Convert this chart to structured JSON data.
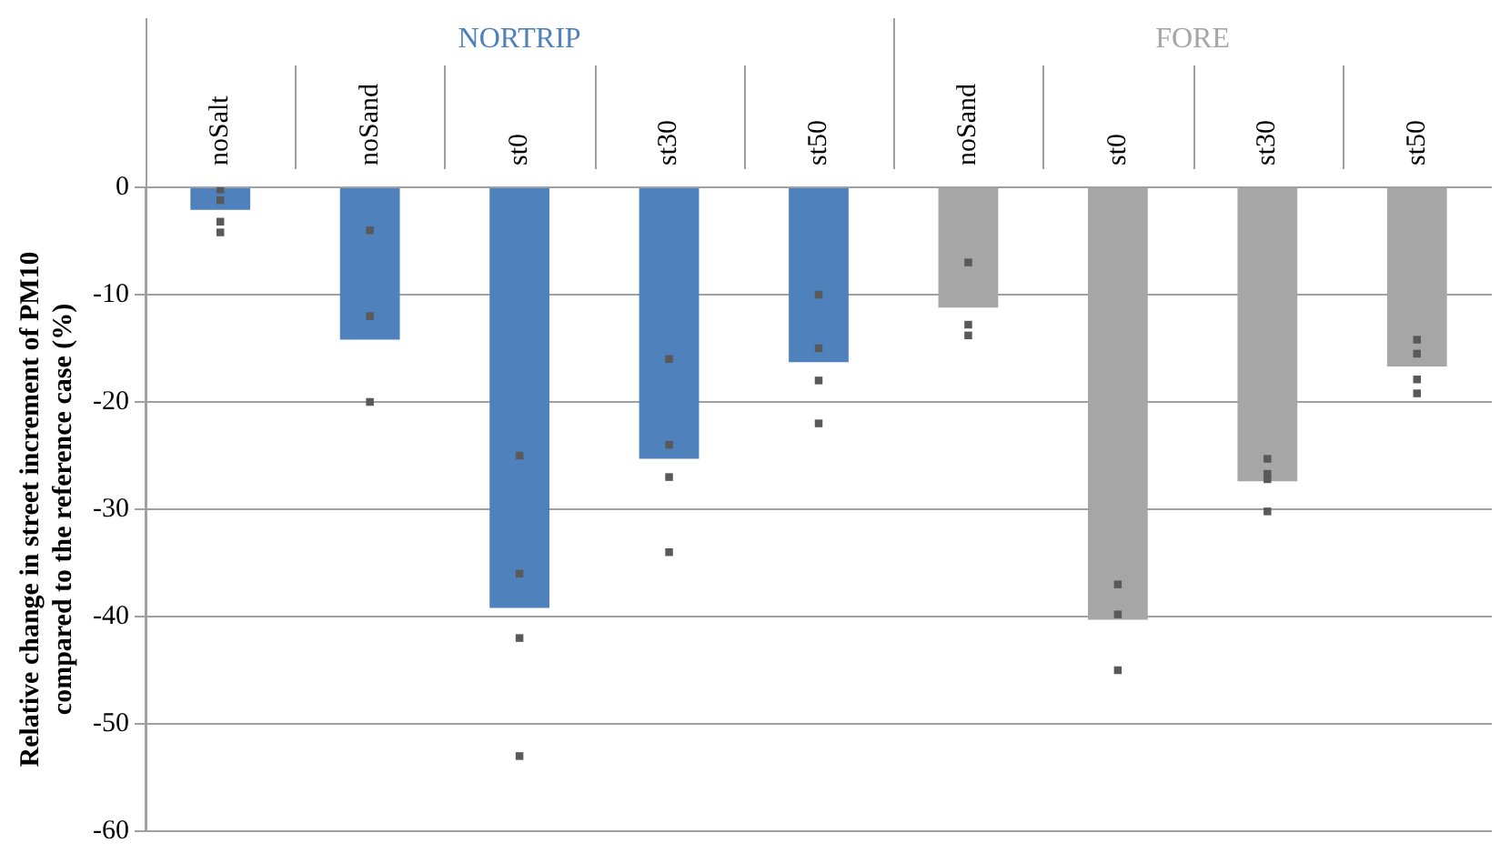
{
  "chart_data": {
    "type": "bar",
    "ylabel": "Relative change in street increment of PM10\ncompared to the reference case (%)",
    "categories": [
      "noSalt",
      "noSand",
      "st0",
      "st30",
      "st50",
      "noSand",
      "st0",
      "st30",
      "st50"
    ],
    "series": [
      {
        "name": "NORTRIP",
        "color": "#4f81bd",
        "values": [
          -2.1,
          -14.2,
          -39.2,
          -25.3,
          -16.3,
          null,
          null,
          null,
          null
        ]
      },
      {
        "name": "FORE",
        "color": "#a6a6a6",
        "values": [
          null,
          null,
          null,
          null,
          null,
          -11.2,
          -40.3,
          -27.4,
          -16.7
        ]
      },
      {
        "type": "scatter",
        "color": "#595959",
        "values": [
          -0.2,
          -4,
          -25,
          -16,
          -10,
          -7,
          -37,
          -25.3,
          -14.2
        ]
      },
      {
        "type": "scatter",
        "color": "#595959",
        "values": [
          -1.2,
          -12,
          -36,
          -24,
          -15,
          -12.8,
          -39.8,
          -26.7,
          -15.5
        ]
      },
      {
        "type": "scatter",
        "color": "#595959",
        "values": [
          -3.2,
          -20,
          -42,
          -27,
          -18,
          -13.8,
          -45,
          -27.2,
          -17.9
        ]
      },
      {
        "type": "scatter",
        "color": "#595959",
        "values": [
          -4.2,
          null,
          -53,
          -34,
          -22,
          null,
          null,
          -30.2,
          -19.2
        ]
      }
    ],
    "ylim": [
      -60,
      0
    ],
    "yticks": [
      -60,
      -50,
      -40,
      -30,
      -20,
      -10,
      0
    ],
    "grid": "y",
    "legend": false,
    "marker": "square"
  }
}
